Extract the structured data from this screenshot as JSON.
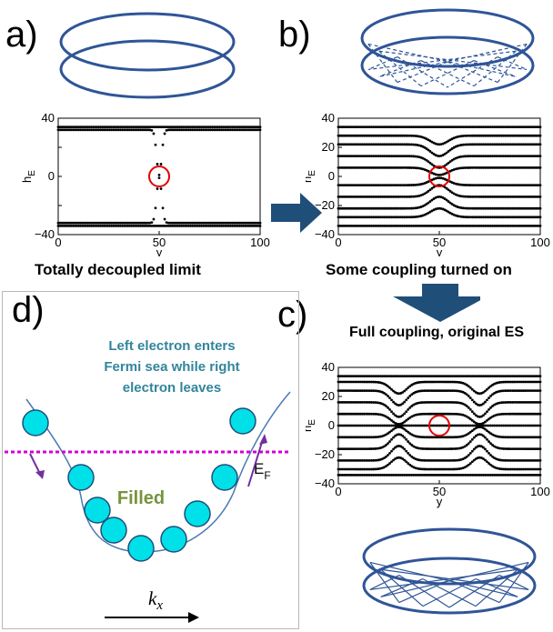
{
  "panels": {
    "a": {
      "letter": "a)",
      "caption": "Totally decoupled limit"
    },
    "b": {
      "letter": "b)",
      "caption": "Some coupling turned on"
    },
    "c": {
      "letter": "c)",
      "caption": "Full coupling, original ES"
    },
    "d": {
      "letter": "d)",
      "text_lines": [
        "Left electron enters",
        "Fermi sea while right",
        "electron leaves"
      ],
      "filled_label": "Filled",
      "fermi_label": "E",
      "fermi_sub": "F",
      "axis_label": "k",
      "axis_sub": "x"
    }
  },
  "colors": {
    "ring": "#2f5597",
    "arrow": "#1f4e79",
    "circle_marker": "#e00000",
    "fermi_line": "#d400d4",
    "ball_fill": "#00e0e8",
    "ball_stroke": "#1f4e79",
    "text_teal": "#31859c",
    "filled_green": "#77933c",
    "purple_arrow": "#7030a0"
  },
  "chart_data": [
    {
      "panel": "a",
      "type": "scatter",
      "xlabel": "y",
      "ylabel": "h",
      "ylabel_sub": "E",
      "xlim": [
        0,
        100
      ],
      "ylim": [
        -40,
        40
      ],
      "xticks": [
        0,
        50,
        100
      ],
      "yticks": [
        -40,
        -20,
        0,
        20,
        40
      ],
      "ytick_labels": [
        "−40",
        "",
        "0",
        "",
        "40"
      ],
      "grid": false,
      "bands": [
        {
          "y": 34,
          "kind": "flat"
        },
        {
          "y": -34,
          "kind": "flat"
        },
        {
          "y": 32,
          "kind": "dip",
          "center": 50,
          "depth": 31
        },
        {
          "y": -32,
          "kind": "dip",
          "center": 50,
          "depth": -31
        }
      ],
      "highlight": {
        "x": 50,
        "y": 0
      }
    },
    {
      "panel": "b",
      "type": "scatter",
      "xlabel": "y",
      "ylabel": "h",
      "ylabel_sub": "E",
      "xlim": [
        0,
        100
      ],
      "ylim": [
        -40,
        40
      ],
      "xticks": [
        0,
        50,
        100
      ],
      "yticks": [
        -40,
        -20,
        0,
        20,
        40
      ],
      "ytick_labels": [
        "−40",
        "−20",
        "0",
        "20",
        "40"
      ],
      "grid": false,
      "bands": [
        {
          "y": 34,
          "kind": "flat"
        },
        {
          "y": 28,
          "kind": "bump",
          "center": 50,
          "amp": -6
        },
        {
          "y": 22,
          "kind": "bump",
          "center": 50,
          "amp": -8
        },
        {
          "y": 14,
          "kind": "bump",
          "center": 50,
          "amp": -8
        },
        {
          "y": 6,
          "kind": "bump",
          "center": 50,
          "amp": -5
        },
        {
          "y": -6,
          "kind": "bump",
          "center": 50,
          "amp": 5
        },
        {
          "y": -14,
          "kind": "bump",
          "center": 50,
          "amp": 8
        },
        {
          "y": -22,
          "kind": "bump",
          "center": 50,
          "amp": 8
        },
        {
          "y": -28,
          "kind": "bump",
          "center": 50,
          "amp": 6
        },
        {
          "y": -34,
          "kind": "flat"
        }
      ],
      "highlight": {
        "x": 50,
        "y": 0
      }
    },
    {
      "panel": "c",
      "type": "scatter",
      "xlabel": "y",
      "ylabel": "h",
      "ylabel_sub": "E",
      "xlim": [
        0,
        100
      ],
      "ylim": [
        -40,
        40
      ],
      "xticks": [
        0,
        50,
        100
      ],
      "yticks": [
        -40,
        -20,
        0,
        20,
        40
      ],
      "ytick_labels": [
        "−40",
        "−20",
        "0",
        "20",
        "40"
      ],
      "grid": false,
      "bands": [
        {
          "y": 34,
          "kind": "flat"
        },
        {
          "y": 30,
          "kind": "bump2",
          "amp": -8
        },
        {
          "y": 24,
          "kind": "bump2",
          "amp": -10
        },
        {
          "y": 16,
          "kind": "bump2",
          "amp": -10
        },
        {
          "y": 8,
          "kind": "bump2",
          "amp": -7
        },
        {
          "y": 0,
          "kind": "flat"
        },
        {
          "y": -8,
          "kind": "bump2",
          "amp": 7
        },
        {
          "y": -16,
          "kind": "bump2",
          "amp": 10
        },
        {
          "y": -24,
          "kind": "bump2",
          "amp": 10
        },
        {
          "y": -30,
          "kind": "bump2",
          "amp": 8
        },
        {
          "y": -34,
          "kind": "flat"
        }
      ],
      "highlight": {
        "x": 50,
        "y": 0
      }
    }
  ]
}
